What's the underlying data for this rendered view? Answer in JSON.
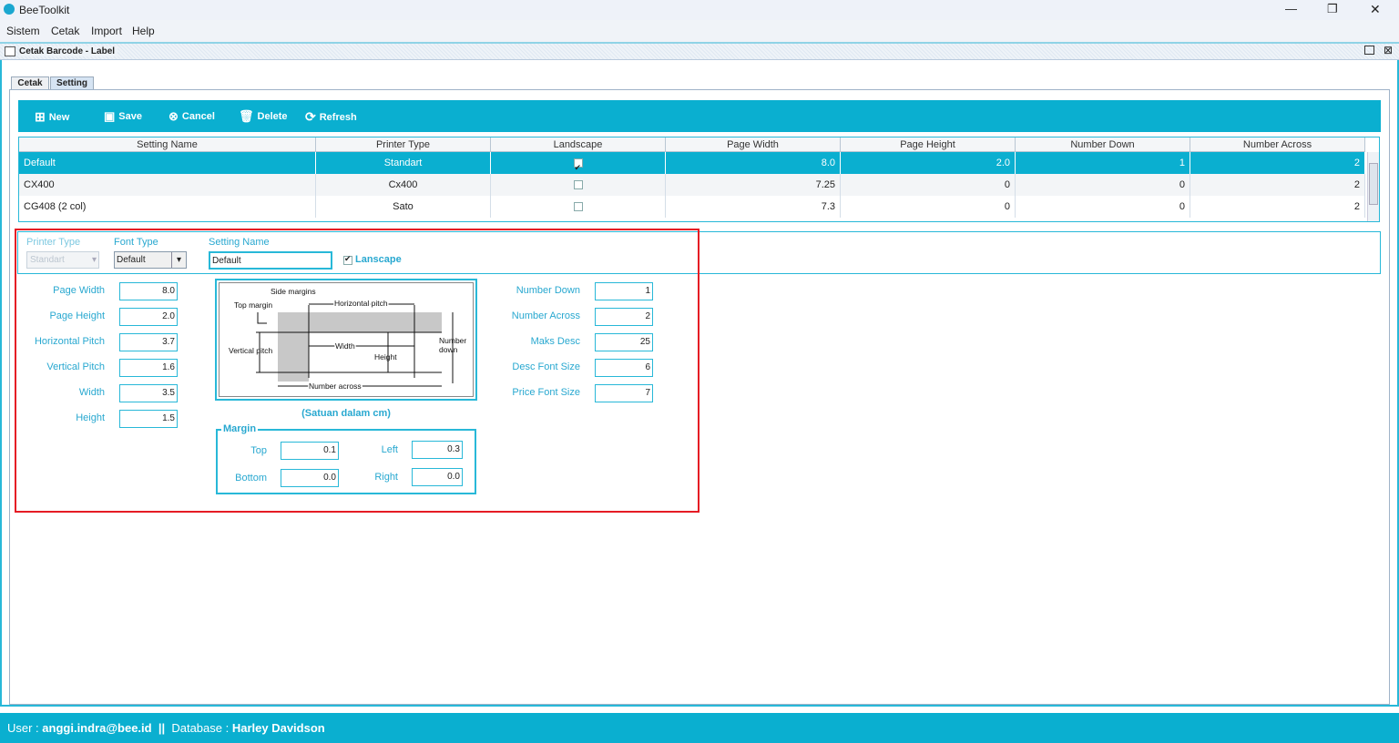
{
  "app": {
    "title": "BeeToolkit",
    "minimize": "—",
    "restore": "❐",
    "close": "✕"
  },
  "menu": [
    "Sistem",
    "Cetak",
    "Import",
    "Help"
  ],
  "frame": {
    "title": "Cetak Barcode - Label"
  },
  "tabs": [
    "Cetak",
    "Setting"
  ],
  "toolbar": {
    "new": "New",
    "save": "Save",
    "cancel": "Cancel",
    "delete": "Delete",
    "refresh": "Refresh"
  },
  "table": {
    "columns": [
      "Setting Name",
      "Printer Type",
      "Landscape",
      "Page Width",
      "Page Height",
      "Number Down",
      "Number Across"
    ],
    "rows": [
      {
        "name": "Default",
        "printer": "Standart",
        "landscape": true,
        "pw": "8.0",
        "ph": "2.0",
        "nd": "1",
        "na": "2",
        "selected": true
      },
      {
        "name": "CX400",
        "printer": "Cx400",
        "landscape": false,
        "pw": "7.25",
        "ph": "0",
        "nd": "0",
        "na": "2"
      },
      {
        "name": "CG408 (2 col)",
        "printer": "Sato",
        "landscape": false,
        "pw": "7.3",
        "ph": "0",
        "nd": "0",
        "na": "2"
      }
    ]
  },
  "form": {
    "printer_type_label": "Printer Type",
    "printer_type": "Standart",
    "font_type_label": "Font Type",
    "font_type": "Default",
    "setting_name_label": "Setting Name",
    "setting_name": "Default",
    "landscape_label": "Lanscape",
    "landscape": true,
    "left": [
      {
        "label": "Page Width",
        "value": "8.0"
      },
      {
        "label": "Page Height",
        "value": "2.0"
      },
      {
        "label": "Horizontal Pitch",
        "value": "3.7"
      },
      {
        "label": "Vertical Pitch",
        "value": "1.6"
      },
      {
        "label": "Width",
        "value": "3.5"
      },
      {
        "label": "Height",
        "value": "1.5"
      }
    ],
    "right": [
      {
        "label": "Number Down",
        "value": "1"
      },
      {
        "label": "Number Across",
        "value": "2"
      },
      {
        "label": "Maks Desc",
        "value": "25"
      },
      {
        "label": "Desc Font Size",
        "value": "6"
      },
      {
        "label": "Price Font Size",
        "value": "7"
      }
    ],
    "units_note": "(Satuan dalam cm)",
    "margin": {
      "title": "Margin",
      "top_label": "Top",
      "top": "0.1",
      "left_label": "Left",
      "left": "0.3",
      "bottom_label": "Bottom",
      "bottom": "0.0",
      "right_label": "Right",
      "right": "0.0"
    }
  },
  "diagram": {
    "side_margins": "Side margins",
    "top_margin": "Top margin",
    "horizontal_pitch": "Horizontal pitch",
    "vertical_pitch": "Vertical pitch",
    "width": "Width",
    "height": "Height",
    "number_down_1": "Number",
    "number_down_2": "down",
    "number_across": "Number across"
  },
  "status": {
    "user_label": "User : ",
    "user": "anggi.indra@bee.id",
    "sep": "  ||  ",
    "db_label": "Database : ",
    "db": "Harley Davidson"
  },
  "colors": {
    "accent": "#0aafd0",
    "highlight": "#e51b24"
  }
}
